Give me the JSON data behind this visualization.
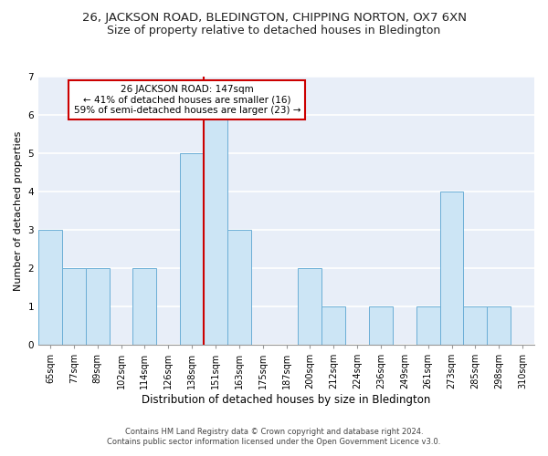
{
  "title1": "26, JACKSON ROAD, BLEDINGTON, CHIPPING NORTON, OX7 6XN",
  "title2": "Size of property relative to detached houses in Bledington",
  "xlabel": "Distribution of detached houses by size in Bledington",
  "ylabel": "Number of detached properties",
  "categories": [
    "65sqm",
    "77sqm",
    "89sqm",
    "102sqm",
    "114sqm",
    "126sqm",
    "138sqm",
    "151sqm",
    "163sqm",
    "175sqm",
    "187sqm",
    "200sqm",
    "212sqm",
    "224sqm",
    "236sqm",
    "249sqm",
    "261sqm",
    "273sqm",
    "285sqm",
    "298sqm",
    "310sqm"
  ],
  "values": [
    3,
    2,
    2,
    0,
    2,
    0,
    5,
    6,
    3,
    0,
    0,
    2,
    1,
    0,
    1,
    0,
    1,
    4,
    1,
    1,
    0
  ],
  "bar_color": "#cce5f5",
  "bar_edge_color": "#6baed6",
  "highlight_index": 7,
  "highlight_line_color": "#cc0000",
  "annotation_text": "26 JACKSON ROAD: 147sqm\n← 41% of detached houses are smaller (16)\n59% of semi-detached houses are larger (23) →",
  "annotation_box_color": "#ffffff",
  "annotation_box_edge": "#cc0000",
  "footer1": "Contains HM Land Registry data © Crown copyright and database right 2024.",
  "footer2": "Contains public sector information licensed under the Open Government Licence v3.0.",
  "ylim": [
    0,
    7
  ],
  "yticks": [
    0,
    1,
    2,
    3,
    4,
    5,
    6,
    7
  ],
  "bg_color": "#e8eef8",
  "grid_color": "#ffffff",
  "title1_fontsize": 9.5,
  "title2_fontsize": 9,
  "tick_fontsize": 7,
  "ylabel_fontsize": 8,
  "xlabel_fontsize": 8.5,
  "annotation_fontsize": 7.5,
  "footer_fontsize": 6
}
